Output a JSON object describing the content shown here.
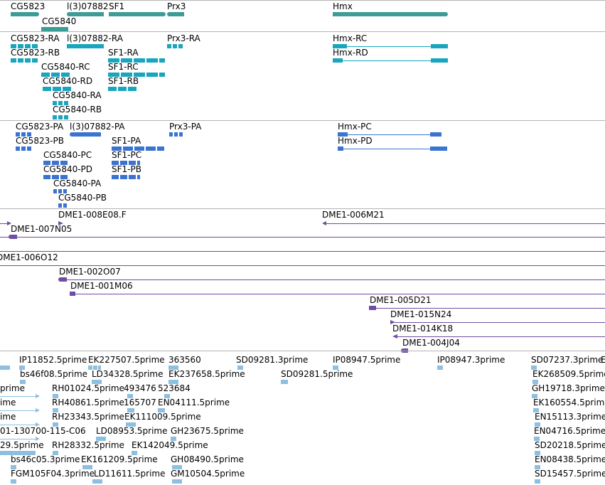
{
  "tracks": {
    "genes": {
      "color": "#3c9c96",
      "features": [
        {
          "label": "CG5823"
        },
        {
          "label": "l(3)07882"
        },
        {
          "label": "SF1"
        },
        {
          "label": "Prx3"
        },
        {
          "label": "Hmx"
        },
        {
          "label": "CG5840"
        }
      ]
    },
    "transcripts": {
      "color": "#19a5bd",
      "features": [
        {
          "label": "CG5823-RA"
        },
        {
          "label": "l(3)07882-RA"
        },
        {
          "label": "Prx3-RA"
        },
        {
          "label": "Hmx-RC"
        },
        {
          "label": "CG5823-RB"
        },
        {
          "label": "SF1-RA"
        },
        {
          "label": "Hmx-RD"
        },
        {
          "label": "CG5840-RC"
        },
        {
          "label": "SF1-RC"
        },
        {
          "label": "CG5840-RD"
        },
        {
          "label": "SF1-RB"
        },
        {
          "label": "CG5840-RA"
        },
        {
          "label": "CG5840-RB"
        }
      ]
    },
    "proteins": {
      "color": "#3a74d0",
      "features": [
        {
          "label": "CG5823-PA"
        },
        {
          "label": "l(3)07882-PA"
        },
        {
          "label": "Prx3-PA"
        },
        {
          "label": "Hmx-PC"
        },
        {
          "label": "CG5823-PB"
        },
        {
          "label": "SF1-PA"
        },
        {
          "label": "Hmx-PD"
        },
        {
          "label": "CG5840-PC"
        },
        {
          "label": "SF1-PC"
        },
        {
          "label": "CG5840-PD"
        },
        {
          "label": "SF1-PB"
        },
        {
          "label": "CG5840-PA"
        },
        {
          "label": "CG5840-PB"
        }
      ]
    },
    "bacs": {
      "color": "#6e4da3",
      "features": [
        {
          "label": "DME1-008E08.F"
        },
        {
          "label": "DME1-006M21"
        },
        {
          "label": "DME1-007N05"
        },
        {
          "label": "DME1-006O12"
        },
        {
          "label": "DME1-002O07"
        },
        {
          "label": "DME1-001M06"
        },
        {
          "label": "DME1-005D21"
        },
        {
          "label": "DME1-015N24"
        },
        {
          "label": "DME1-014K18"
        },
        {
          "label": "DME1-004J04"
        }
      ]
    },
    "ests": {
      "color": "#8cbfe0",
      "features": [
        {
          "label": "IP11852.5prime"
        },
        {
          "label": "EK227507.5prime"
        },
        {
          "label": "363560"
        },
        {
          "label": "SD09281.3prime"
        },
        {
          "label": "IP08947.5prime"
        },
        {
          "label": "IP08947.3prime"
        },
        {
          "label": "SD07237.3prime"
        },
        {
          "label": "E"
        },
        {
          "label": "bs46f08.5prime"
        },
        {
          "label": "LD34328.5prime"
        },
        {
          "label": "EK237658.5prime"
        },
        {
          "label": "SD09281.5prime"
        },
        {
          "label": "EK268509.5prime"
        },
        {
          "label": "prime"
        },
        {
          "label": "RH01024.5prime"
        },
        {
          "label": "493476"
        },
        {
          "label": "523684"
        },
        {
          "label": "GH19718.3prime"
        },
        {
          "label": "ime"
        },
        {
          "label": "RH40861.5prime"
        },
        {
          "label": "165707"
        },
        {
          "label": "EN04111.5prime"
        },
        {
          "label": "EK160554.5prime"
        },
        {
          "label": "ime"
        },
        {
          "label": "RH23343.5prime"
        },
        {
          "label": "EK111009.5prime"
        },
        {
          "label": "EN15113.3prime"
        },
        {
          "label": "01-130700-115-C06"
        },
        {
          "label": "LD08953.5prime"
        },
        {
          "label": "GH23675.5prime"
        },
        {
          "label": "EN04716.5prime"
        },
        {
          "label": "29.5prime"
        },
        {
          "label": "RH28332.5prime"
        },
        {
          "label": "EK142049.5prime"
        },
        {
          "label": "SD20218.5prime"
        },
        {
          "label": "bs46c05.3prime"
        },
        {
          "label": "EK161209.5prime"
        },
        {
          "label": "GH08490.5prime"
        },
        {
          "label": "EN08438.5prime"
        },
        {
          "label": "FGM105F04.3prime"
        },
        {
          "label": "LD11611.5prime"
        },
        {
          "label": "GM10504.5prime"
        },
        {
          "label": "SD15457.5prime"
        }
      ]
    }
  }
}
